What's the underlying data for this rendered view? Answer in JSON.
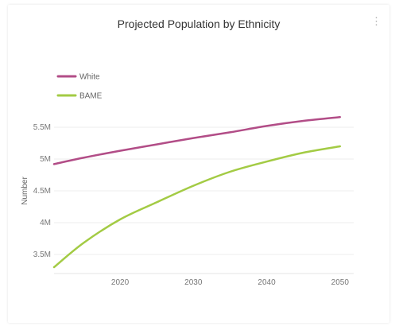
{
  "menu_icon": "kebab-menu-icon",
  "chart_data": {
    "type": "line",
    "title": "Projected Population by Ethnicity",
    "xlabel": "",
    "ylabel": "Number",
    "xlim": [
      2011,
      2051
    ],
    "ylim": [
      3.25,
      5.75
    ],
    "x_ticks": [
      2020,
      2030,
      2040,
      2050
    ],
    "x_tick_labels": [
      "2020",
      "2030",
      "2040",
      "2050"
    ],
    "y_ticks": [
      3.5,
      4,
      4.5,
      5,
      5.5
    ],
    "y_tick_labels": [
      "3.5M",
      "4M",
      "4.5M",
      "5M",
      "5.5M"
    ],
    "grid": "horizontal",
    "legend_position": "top-left",
    "series": [
      {
        "name": "White",
        "color": "#b24d87",
        "x": [
          2011,
          2015,
          2020,
          2025,
          2030,
          2035,
          2040,
          2045,
          2050
        ],
        "values": [
          4.92,
          5.02,
          5.13,
          5.23,
          5.33,
          5.42,
          5.52,
          5.6,
          5.66
        ]
      },
      {
        "name": "BAME",
        "color": "#a3cb44",
        "x": [
          2011,
          2015,
          2020,
          2025,
          2030,
          2035,
          2040,
          2045,
          2050
        ],
        "values": [
          3.3,
          3.68,
          4.05,
          4.32,
          4.58,
          4.8,
          4.96,
          5.1,
          5.2
        ]
      }
    ]
  }
}
